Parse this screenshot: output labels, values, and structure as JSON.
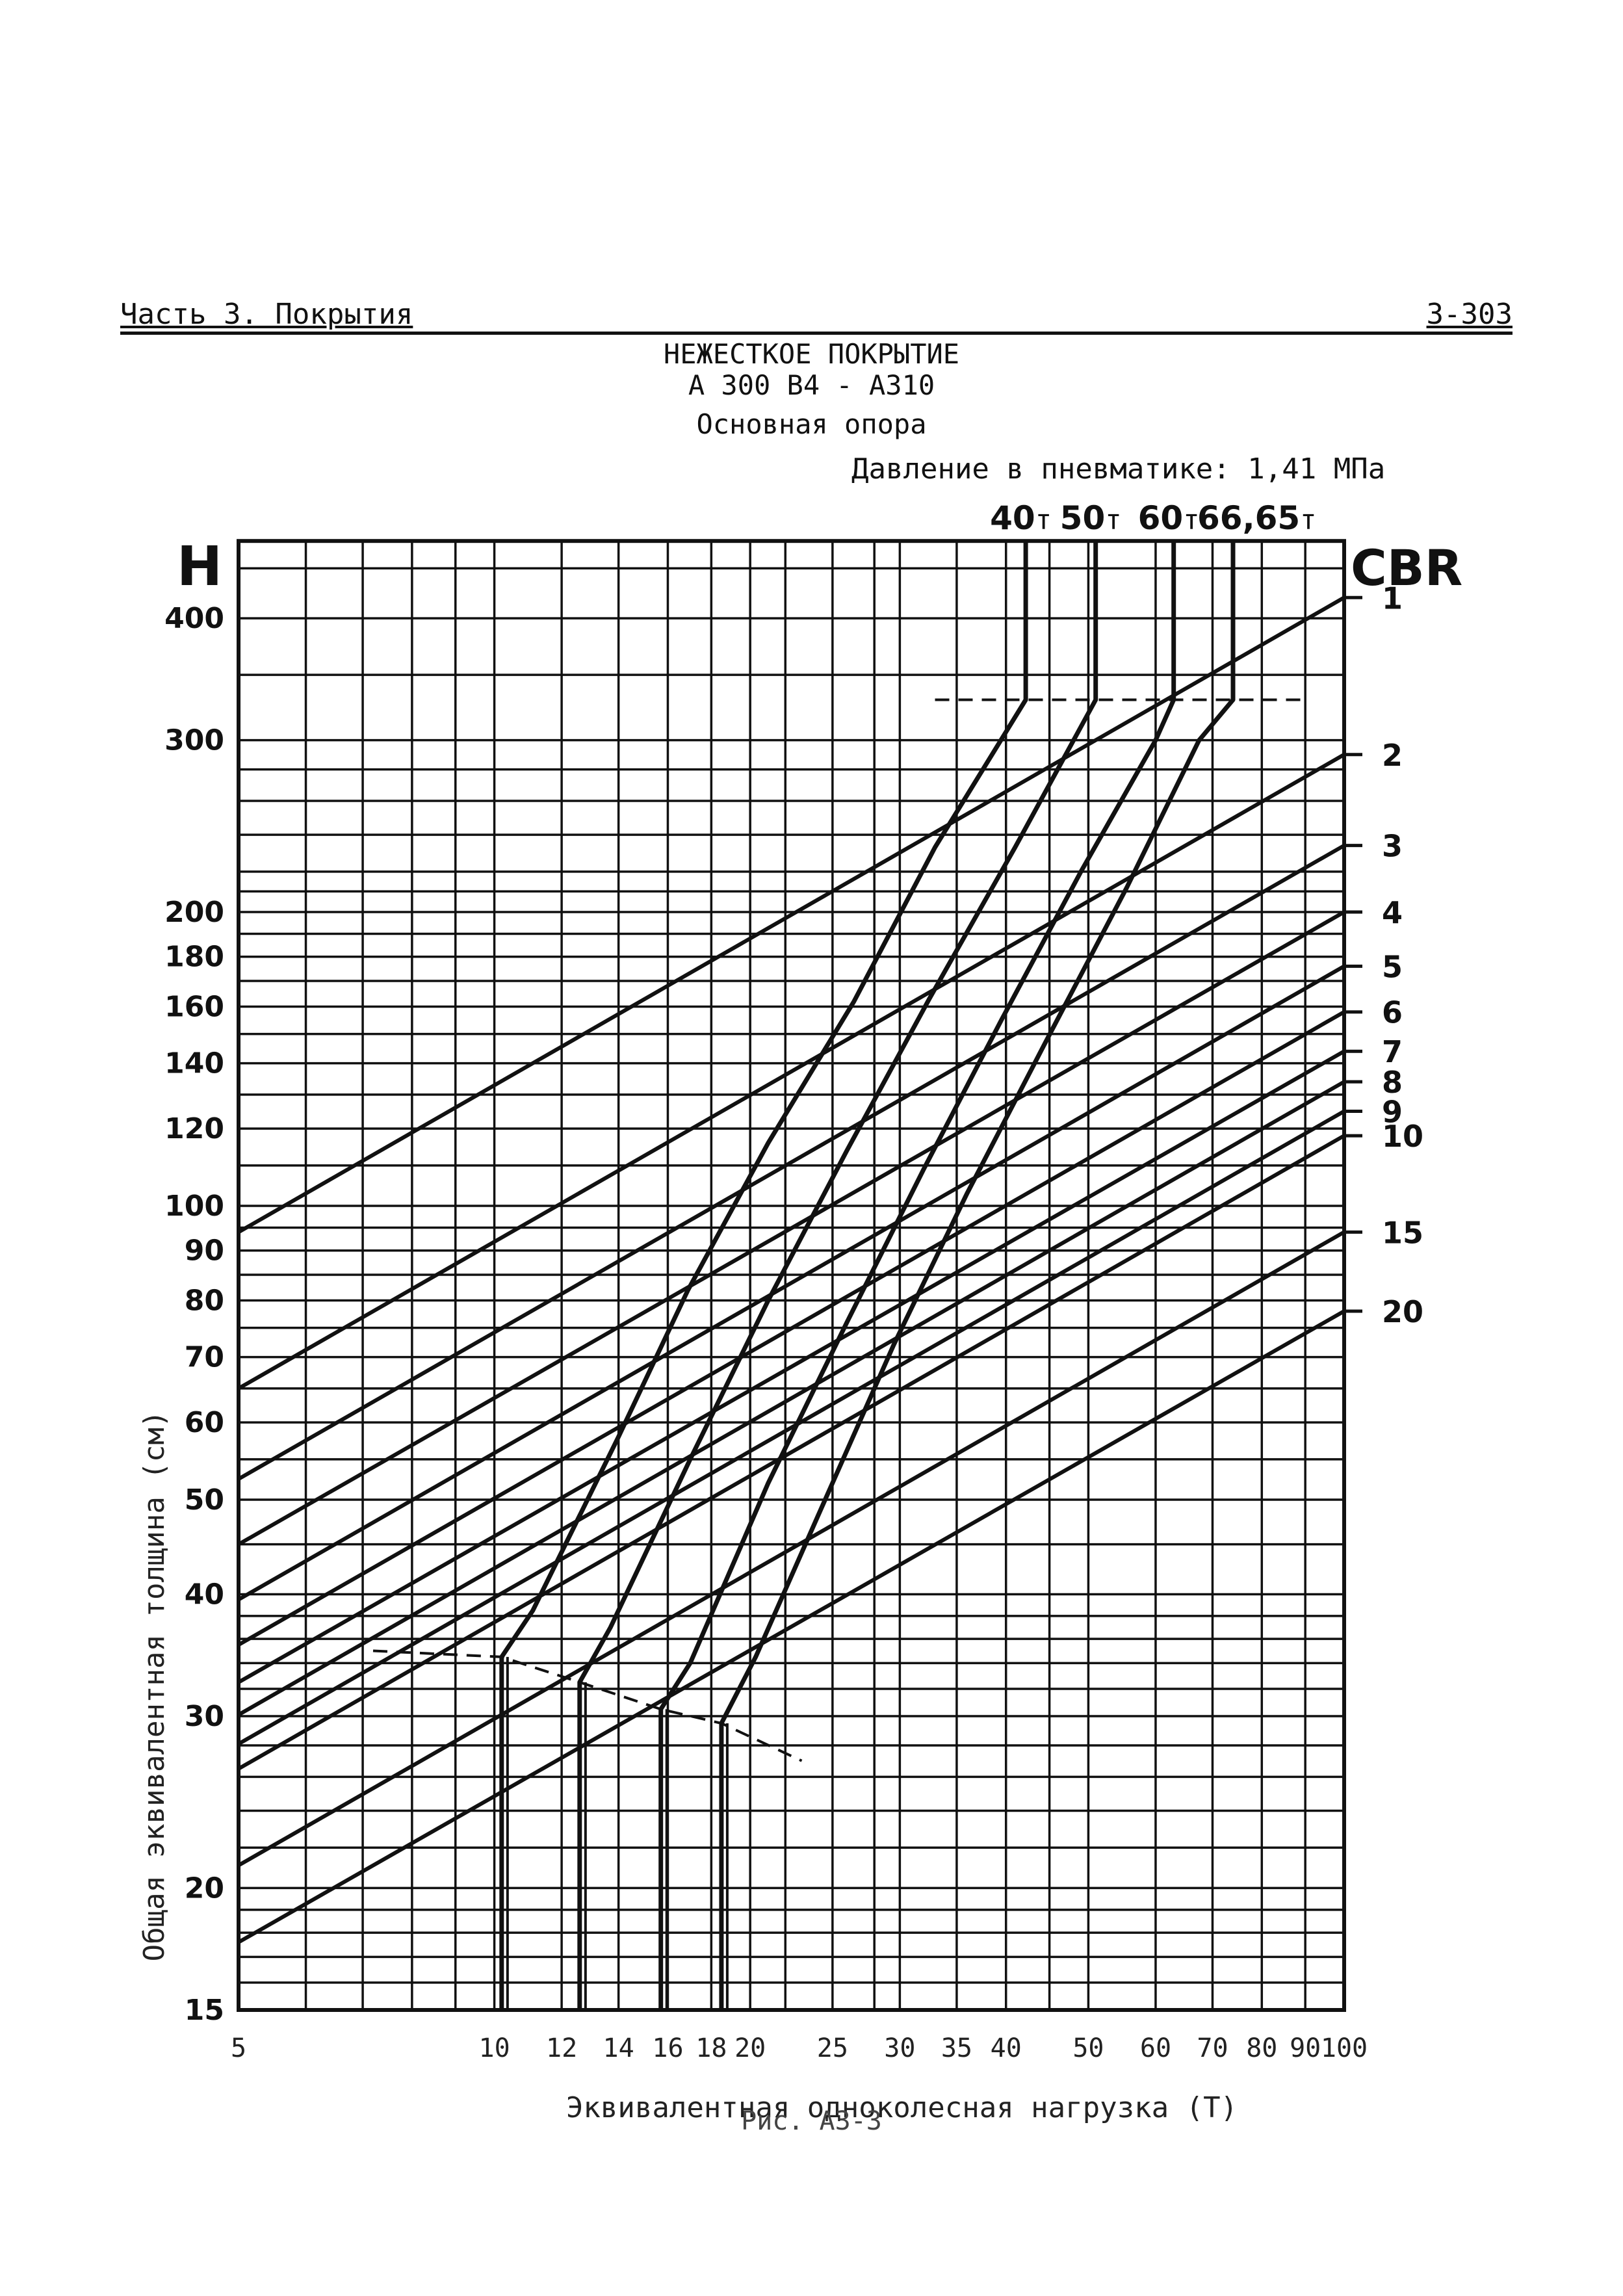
{
  "header": {
    "left": "Часть 3. Покрытия",
    "right": "3-303"
  },
  "title_line1": "НЕЖЕСТКОЕ ПОКРЫТИЕ",
  "title_line2": "А 300 В4 - А310",
  "subtitle": "Основная опора",
  "pressure_note": "Давление в пневматике: 1,41 МПа",
  "caption": "Рис. А3-3",
  "chart_data": {
    "type": "line",
    "x_scale": "log",
    "y_scale": "log",
    "xlim": [
      5,
      100
    ],
    "ylim": [
      15,
      480
    ],
    "grid": true,
    "xlabel": "Эквивалентная одноколесная нагрузка (Т)",
    "ylabel": "Общая эквивалентная толщина (см)",
    "y_axis_letter": "H",
    "right_axis_letter": "CBR",
    "x_ticks": [
      {
        "v": 5,
        "label": "5"
      },
      {
        "v": 10,
        "label": "10"
      },
      {
        "v": 12,
        "label": "12"
      },
      {
        "v": 14,
        "label": "14"
      },
      {
        "v": 16,
        "label": "16"
      },
      {
        "v": 18,
        "label": "18"
      },
      {
        "v": 20,
        "label": "20"
      },
      {
        "v": 25,
        "label": "25"
      },
      {
        "v": 30,
        "label": "30"
      },
      {
        "v": 35,
        "label": "35"
      },
      {
        "v": 40,
        "label": "40"
      },
      {
        "v": 50,
        "label": "50"
      },
      {
        "v": 60,
        "label": "60"
      },
      {
        "v": 70,
        "label": "70"
      },
      {
        "v": 80,
        "label": "80"
      },
      {
        "v": 90,
        "label": "90"
      },
      {
        "v": 100,
        "label": "100"
      }
    ],
    "x_grid": [
      5,
      6,
      7,
      8,
      9,
      10,
      12,
      14,
      16,
      18,
      20,
      22,
      25,
      28,
      30,
      35,
      40,
      45,
      50,
      60,
      70,
      80,
      90,
      100
    ],
    "y_ticks": [
      {
        "v": 15,
        "label": "15"
      },
      {
        "v": 20,
        "label": "20"
      },
      {
        "v": 30,
        "label": "30"
      },
      {
        "v": 40,
        "label": "40"
      },
      {
        "v": 50,
        "label": "50"
      },
      {
        "v": 60,
        "label": "60"
      },
      {
        "v": 70,
        "label": "70"
      },
      {
        "v": 80,
        "label": "80"
      },
      {
        "v": 90,
        "label": "90"
      },
      {
        "v": 100,
        "label": "100"
      },
      {
        "v": 120,
        "label": "120"
      },
      {
        "v": 140,
        "label": "140"
      },
      {
        "v": 160,
        "label": "160"
      },
      {
        "v": 180,
        "label": "180"
      },
      {
        "v": 200,
        "label": "200"
      },
      {
        "v": 300,
        "label": "300"
      },
      {
        "v": 400,
        "label": "400"
      }
    ],
    "y_grid": [
      15,
      16,
      17,
      18,
      19,
      20,
      22,
      24,
      26,
      28,
      30,
      32,
      34,
      36,
      38,
      40,
      45,
      50,
      55,
      60,
      65,
      70,
      75,
      80,
      85,
      90,
      95,
      100,
      110,
      120,
      130,
      140,
      150,
      160,
      170,
      180,
      190,
      200,
      210,
      220,
      240,
      260,
      280,
      300,
      350,
      400,
      450,
      480
    ],
    "cbr_lines": [
      {
        "cbr": "1",
        "points": [
          [
            5,
            94
          ],
          [
            100,
            420
          ]
        ]
      },
      {
        "cbr": "2",
        "points": [
          [
            5,
            65
          ],
          [
            100,
            290
          ]
        ]
      },
      {
        "cbr": "3",
        "points": [
          [
            5,
            52.5
          ],
          [
            100,
            234
          ]
        ]
      },
      {
        "cbr": "4",
        "points": [
          [
            5,
            45
          ],
          [
            100,
            200
          ]
        ]
      },
      {
        "cbr": "5",
        "points": [
          [
            5,
            39.5
          ],
          [
            100,
            176
          ]
        ]
      },
      {
        "cbr": "6",
        "points": [
          [
            5,
            35.5
          ],
          [
            100,
            158
          ]
        ]
      },
      {
        "cbr": "7",
        "points": [
          [
            5,
            32.5
          ],
          [
            100,
            144
          ]
        ]
      },
      {
        "cbr": "8",
        "points": [
          [
            5,
            30.1
          ],
          [
            100,
            134
          ]
        ]
      },
      {
        "cbr": "9",
        "points": [
          [
            5,
            28.1
          ],
          [
            100,
            125
          ]
        ]
      },
      {
        "cbr": "10",
        "points": [
          [
            5,
            26.5
          ],
          [
            100,
            118
          ]
        ]
      },
      {
        "cbr": "15",
        "points": [
          [
            5,
            21.1
          ],
          [
            100,
            94
          ]
        ]
      },
      {
        "cbr": "20",
        "points": [
          [
            5,
            17.6
          ],
          [
            100,
            78
          ]
        ]
      }
    ],
    "load_lines": [
      {
        "name": "40т",
        "label": "40",
        "points": [
          [
            10.2,
            15
          ],
          [
            10.2,
            34.5
          ],
          [
            11.1,
            38.5
          ],
          [
            14.0,
            58
          ],
          [
            16.9,
            82
          ],
          [
            21.0,
            116
          ],
          [
            26.5,
            162
          ],
          [
            33.0,
            233
          ],
          [
            42.2,
            330
          ],
          [
            42.2,
            480
          ]
        ]
      },
      {
        "name": "50т",
        "label": "50",
        "points": [
          [
            12.6,
            15
          ],
          [
            12.6,
            32.5
          ],
          [
            13.7,
            37
          ],
          [
            17.0,
            55
          ],
          [
            21.0,
            80
          ],
          [
            26.0,
            114
          ],
          [
            32.5,
            163
          ],
          [
            41.0,
            233
          ],
          [
            51.0,
            330
          ],
          [
            51.0,
            480
          ]
        ]
      },
      {
        "name": "60т",
        "label": "60",
        "points": [
          [
            15.7,
            15
          ],
          [
            15.7,
            30.5
          ],
          [
            17.0,
            34
          ],
          [
            21.0,
            52
          ],
          [
            26.0,
            76
          ],
          [
            32.0,
            109
          ],
          [
            39.5,
            155
          ],
          [
            49.0,
            220
          ],
          [
            60.0,
            300
          ],
          [
            63.0,
            330
          ],
          [
            63.0,
            480
          ]
        ]
      },
      {
        "name": "66,65т",
        "label": "66,65",
        "points": [
          [
            18.5,
            15
          ],
          [
            18.5,
            29.5
          ],
          [
            20.3,
            34.5
          ],
          [
            24.0,
            48
          ],
          [
            29.5,
            72
          ],
          [
            36.0,
            103
          ],
          [
            44.5,
            147
          ],
          [
            55.5,
            212
          ],
          [
            67.5,
            300
          ],
          [
            74.0,
            330
          ],
          [
            74.0,
            480
          ]
        ]
      }
    ],
    "load_unit": "т",
    "dashed_lines": [
      {
        "points": [
          [
            7.2,
            35
          ],
          [
            10.2,
            34.5
          ],
          [
            12.6,
            32.5
          ],
          [
            15.7,
            30.5
          ],
          [
            18.5,
            29.5
          ],
          [
            23.0,
            27
          ]
        ]
      },
      {
        "points": [
          [
            33.0,
            330
          ],
          [
            90.0,
            330
          ]
        ]
      }
    ]
  }
}
